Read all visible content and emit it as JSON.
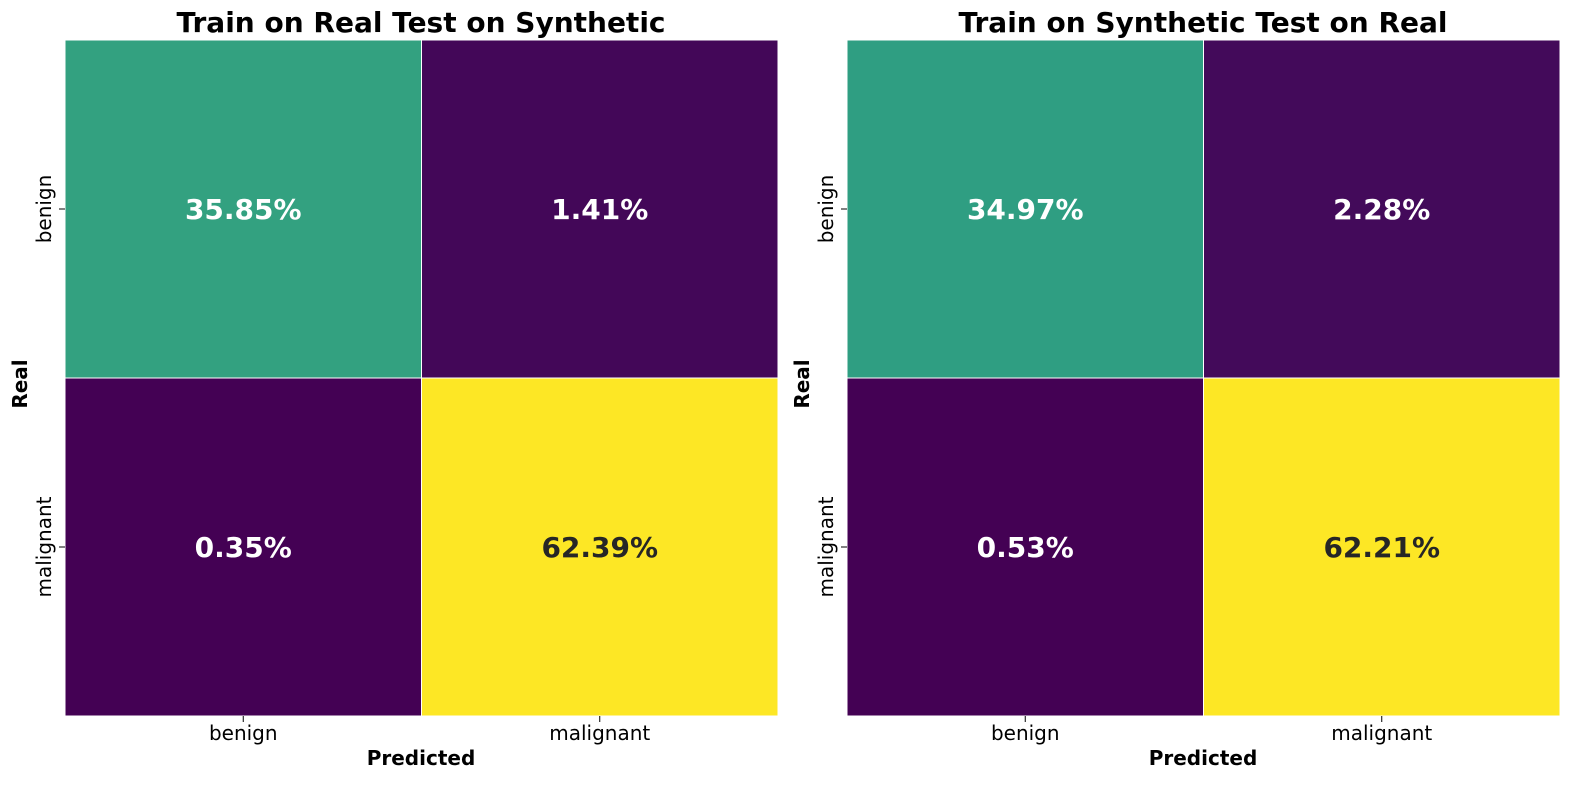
{
  "chart_data": [
    {
      "type": "heatmap",
      "title": "Train on Real Test on Synthetic",
      "xlabel": "Predicted",
      "ylabel": "Real",
      "x_categories": [
        "benign",
        "malignant"
      ],
      "y_categories": [
        "benign",
        "malignant"
      ],
      "values": [
        [
          35.85,
          1.41
        ],
        [
          0.35,
          62.39
        ]
      ],
      "cell_labels": [
        [
          "35.85%",
          "1.41%"
        ],
        [
          "0.35%",
          "62.39%"
        ]
      ],
      "colorscale": "viridis",
      "colorbar": false
    },
    {
      "type": "heatmap",
      "title": "Train on Synthetic Test on Real",
      "xlabel": "Predicted",
      "ylabel": "Real",
      "x_categories": [
        "benign",
        "malignant"
      ],
      "y_categories": [
        "benign",
        "malignant"
      ],
      "values": [
        [
          34.97,
          2.28
        ],
        [
          0.53,
          62.21
        ]
      ],
      "cell_labels": [
        [
          "34.97%",
          "2.28%"
        ],
        [
          "0.53%",
          "62.21%"
        ]
      ],
      "colorscale": "viridis",
      "colorbar": false
    }
  ]
}
